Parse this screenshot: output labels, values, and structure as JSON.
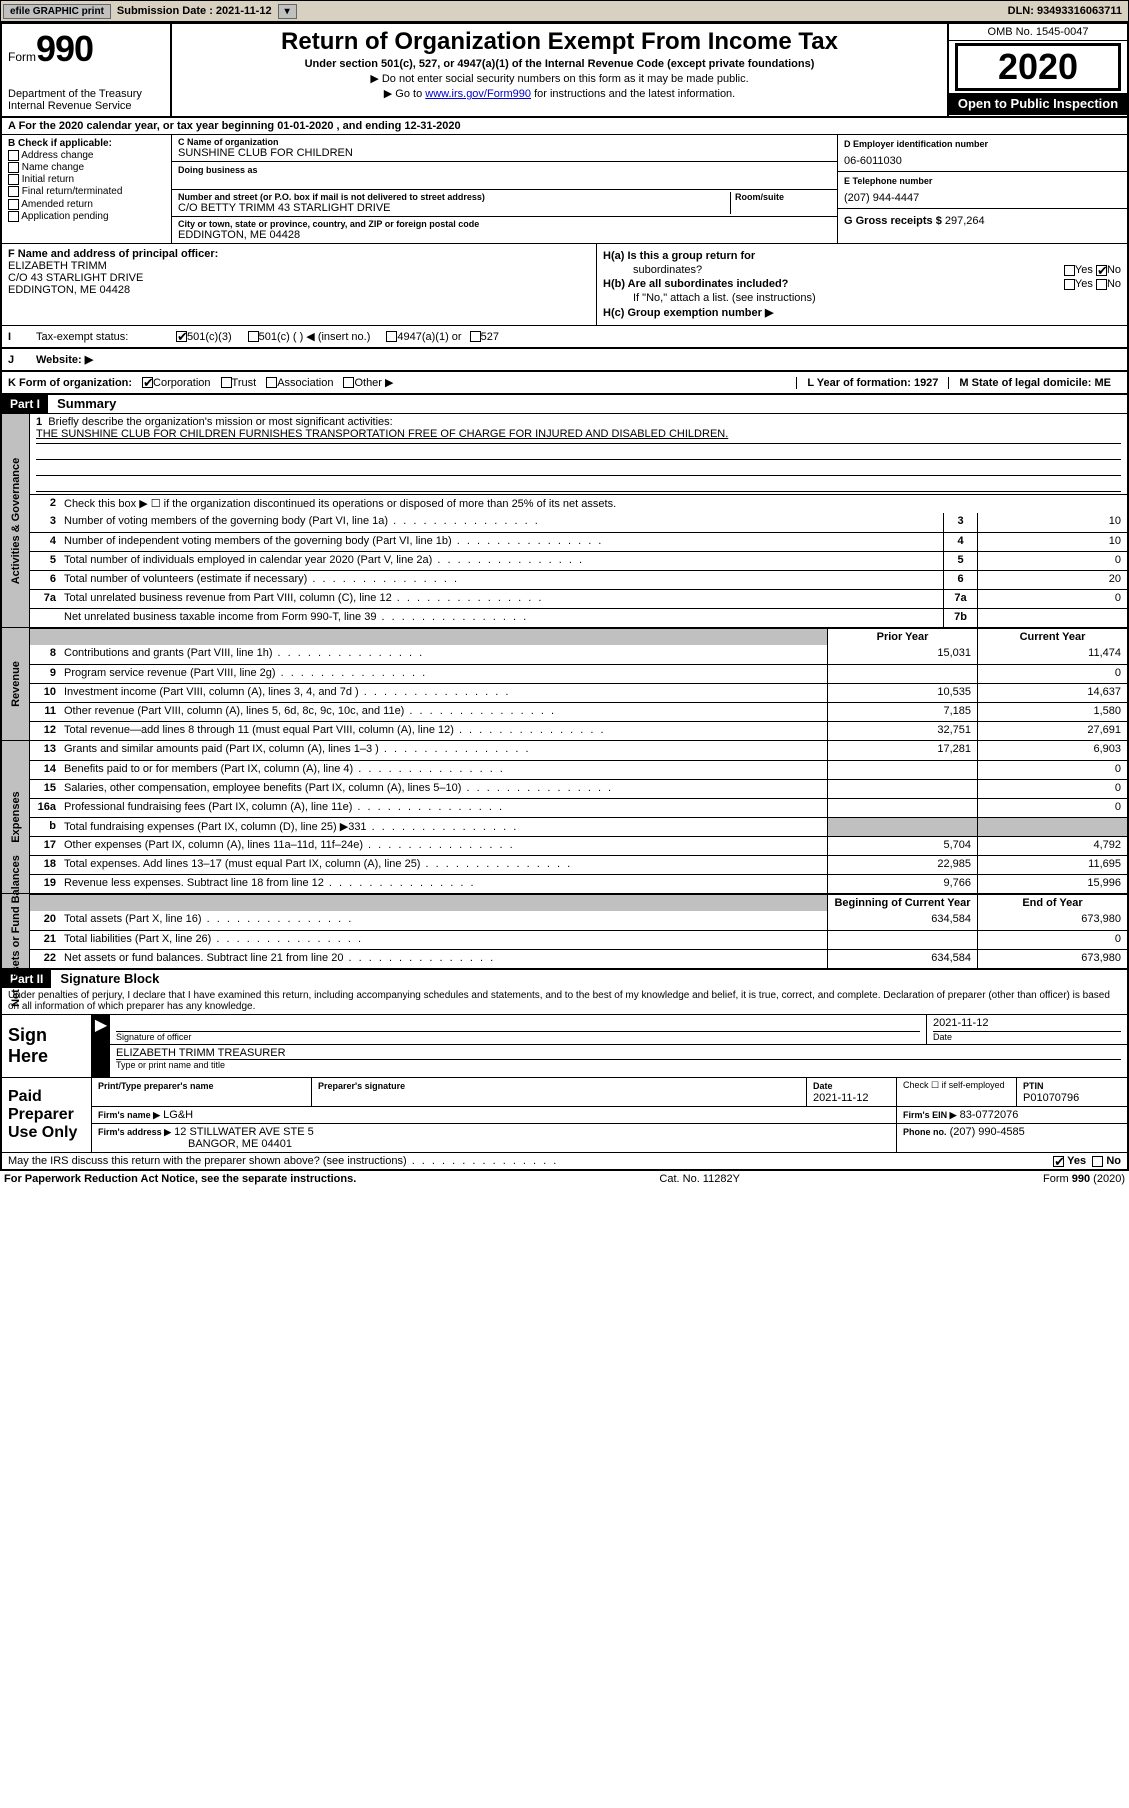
{
  "topbar": {
    "efile_label": "efile GRAPHIC print",
    "submission_label": "Submission Date : 2021-11-12",
    "dln": "DLN: 93493316063711"
  },
  "header": {
    "form_word": "Form",
    "form_no": "990",
    "dept": "Department of the Treasury",
    "irs": "Internal Revenue Service",
    "title": "Return of Organization Exempt From Income Tax",
    "subtitle": "Under section 501(c), 527, or 4947(a)(1) of the Internal Revenue Code (except private foundations)",
    "note1": "▶ Do not enter social security numbers on this form as it may be made public.",
    "note2_pre": "▶ Go to ",
    "note2_link": "www.irs.gov/Form990",
    "note2_post": " for instructions and the latest information.",
    "omb": "OMB No. 1545-0047",
    "year": "2020",
    "inspection": "Open to Public Inspection"
  },
  "row_a": "A For the 2020 calendar year, or tax year beginning 01-01-2020    , and ending 12-31-2020",
  "section_b": {
    "check_label": "B Check if applicable:",
    "opts": [
      "Address change",
      "Name change",
      "Initial return",
      "Final return/terminated",
      "Amended return",
      "Application pending"
    ],
    "c_label": "C Name of organization",
    "org_name": "SUNSHINE CLUB FOR CHILDREN",
    "dba_label": "Doing business as",
    "street_label": "Number and street (or P.O. box if mail is not delivered to street address)",
    "room_label": "Room/suite",
    "street": "C/O BETTY TRIMM 43 STARLIGHT DRIVE",
    "city_label": "City or town, state or province, country, and ZIP or foreign postal code",
    "city": "EDDINGTON, ME  04428",
    "d_label": "D Employer identification number",
    "ein": "06-6011030",
    "e_label": "E Telephone number",
    "tel": "(207) 944-4447",
    "g_label": "G Gross receipts $",
    "gross": "297,264"
  },
  "section_f": {
    "f_label": "F Name and address of principal officer:",
    "officer1": "ELIZABETH TRIMM",
    "officer2": "C/O 43 STARLIGHT DRIVE",
    "officer3": "EDDINGTON, ME  04428",
    "ha": "H(a)  Is this a group return for",
    "ha2": "subordinates?",
    "hb": "H(b)  Are all subordinates included?",
    "hb_note": "If \"No,\" attach a list. (see instructions)",
    "hc": "H(c)  Group exemption number ▶",
    "yes": "Yes",
    "no": "No"
  },
  "row_i": {
    "label": "Tax-exempt status:",
    "o1": "501(c)(3)",
    "o2": "501(c) (   ) ◀ (insert no.)",
    "o3": "4947(a)(1) or",
    "o4": "527"
  },
  "row_j": {
    "label": "Website: ▶"
  },
  "row_k": {
    "label": "K Form of organization:",
    "o1": "Corporation",
    "o2": "Trust",
    "o3": "Association",
    "o4": "Other ▶",
    "l": "L Year of formation: 1927",
    "m": "M State of legal domicile: ME"
  },
  "part1": {
    "tab": "Part I",
    "title": "Summary",
    "l1_label": "Briefly describe the organization's mission or most significant activities:",
    "mission": "THE SUNSHINE CLUB FOR CHILDREN FURNISHES TRANSPORTATION FREE OF CHARGE FOR INJURED AND DISABLED CHILDREN.",
    "l2": "Check this box ▶ ☐  if the organization discontinued its operations or disposed of more than 25% of its net assets.",
    "gov_label": "Activities & Governance",
    "rev_label": "Revenue",
    "exp_label": "Expenses",
    "net_label": "Net Assets or Fund Balances",
    "rows_gov": [
      {
        "n": "3",
        "d": "Number of voting members of the governing body (Part VI, line 1a)",
        "b": "3",
        "v": "10"
      },
      {
        "n": "4",
        "d": "Number of independent voting members of the governing body (Part VI, line 1b)",
        "b": "4",
        "v": "10"
      },
      {
        "n": "5",
        "d": "Total number of individuals employed in calendar year 2020 (Part V, line 2a)",
        "b": "5",
        "v": "0"
      },
      {
        "n": "6",
        "d": "Total number of volunteers (estimate if necessary)",
        "b": "6",
        "v": "20"
      },
      {
        "n": "7a",
        "d": "Total unrelated business revenue from Part VIII, column (C), line 12",
        "b": "7a",
        "v": "0"
      },
      {
        "n": "",
        "d": "Net unrelated business taxable income from Form 990-T, line 39",
        "b": "7b",
        "v": ""
      }
    ],
    "hdr_prior": "Prior Year",
    "hdr_curr": "Current Year",
    "rows_rev": [
      {
        "n": "8",
        "d": "Contributions and grants (Part VIII, line 1h)",
        "p": "15,031",
        "c": "11,474"
      },
      {
        "n": "9",
        "d": "Program service revenue (Part VIII, line 2g)",
        "p": "",
        "c": "0"
      },
      {
        "n": "10",
        "d": "Investment income (Part VIII, column (A), lines 3, 4, and 7d )",
        "p": "10,535",
        "c": "14,637"
      },
      {
        "n": "11",
        "d": "Other revenue (Part VIII, column (A), lines 5, 6d, 8c, 9c, 10c, and 11e)",
        "p": "7,185",
        "c": "1,580"
      },
      {
        "n": "12",
        "d": "Total revenue—add lines 8 through 11 (must equal Part VIII, column (A), line 12)",
        "p": "32,751",
        "c": "27,691"
      }
    ],
    "rows_exp": [
      {
        "n": "13",
        "d": "Grants and similar amounts paid (Part IX, column (A), lines 1–3 )",
        "p": "17,281",
        "c": "6,903"
      },
      {
        "n": "14",
        "d": "Benefits paid to or for members (Part IX, column (A), line 4)",
        "p": "",
        "c": "0"
      },
      {
        "n": "15",
        "d": "Salaries, other compensation, employee benefits (Part IX, column (A), lines 5–10)",
        "p": "",
        "c": "0"
      },
      {
        "n": "16a",
        "d": "Professional fundraising fees (Part IX, column (A), line 11e)",
        "p": "",
        "c": "0"
      },
      {
        "n": "b",
        "d": "Total fundraising expenses (Part IX, column (D), line 25) ▶331",
        "p": "grey",
        "c": "grey"
      },
      {
        "n": "17",
        "d": "Other expenses (Part IX, column (A), lines 11a–11d, 11f–24e)",
        "p": "5,704",
        "c": "4,792"
      },
      {
        "n": "18",
        "d": "Total expenses. Add lines 13–17 (must equal Part IX, column (A), line 25)",
        "p": "22,985",
        "c": "11,695"
      },
      {
        "n": "19",
        "d": "Revenue less expenses. Subtract line 18 from line 12",
        "p": "9,766",
        "c": "15,996"
      }
    ],
    "hdr_beg": "Beginning of Current Year",
    "hdr_end": "End of Year",
    "rows_net": [
      {
        "n": "20",
        "d": "Total assets (Part X, line 16)",
        "p": "634,584",
        "c": "673,980"
      },
      {
        "n": "21",
        "d": "Total liabilities (Part X, line 26)",
        "p": "",
        "c": "0"
      },
      {
        "n": "22",
        "d": "Net assets or fund balances. Subtract line 21 from line 20",
        "p": "634,584",
        "c": "673,980"
      }
    ]
  },
  "part2": {
    "tab": "Part II",
    "title": "Signature Block",
    "declaration": "Under penalties of perjury, I declare that I have examined this return, including accompanying schedules and statements, and to the best of my knowledge and belief, it is true, correct, and complete. Declaration of preparer (other than officer) is based on all information of which preparer has any knowledge.",
    "sign_here": "Sign Here",
    "sig_officer": "Signature of officer",
    "sig_date": "2021-11-12",
    "date_label": "Date",
    "officer_typed": "ELIZABETH TRIMM TREASURER",
    "type_label": "Type or print name and title",
    "paid": "Paid Preparer Use Only",
    "prep_name_label": "Print/Type preparer's name",
    "prep_sig_label": "Preparer's signature",
    "prep_date": "2021-11-12",
    "check_self": "Check ☐ if self-employed",
    "ptin_label": "PTIN",
    "ptin": "P01070796",
    "firm_name_label": "Firm's name    ▶",
    "firm_name": "LG&H",
    "firm_ein_label": "Firm's EIN ▶",
    "firm_ein": "83-0772076",
    "firm_addr_label": "Firm's address ▶",
    "firm_addr1": "12 STILLWATER AVE STE 5",
    "firm_addr2": "BANGOR, ME  04401",
    "phone_label": "Phone no.",
    "phone": "(207) 990-4585",
    "discuss": "May the IRS discuss this return with the preparer shown above? (see instructions)"
  },
  "footer": {
    "pra": "For Paperwork Reduction Act Notice, see the separate instructions.",
    "cat": "Cat. No. 11282Y",
    "form": "Form 990 (2020)"
  }
}
